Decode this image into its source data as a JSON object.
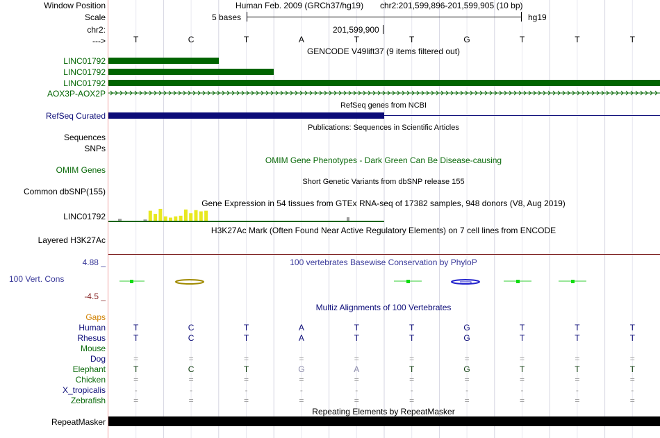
{
  "header": {
    "window_position_label": "Window Position",
    "scale_label": "Scale",
    "chr_label": "chr2:",
    "strand_label": "--->",
    "assembly": "Human Feb. 2009 (GRCh37/hg19)",
    "position": "chr2:201,599,896-201,599,905 (10 bp)",
    "scale_text": "5 bases",
    "db": "hg19",
    "coordinate": "201,599,900"
  },
  "bases": [
    "T",
    "C",
    "T",
    "A",
    "T",
    "T",
    "G",
    "T",
    "T",
    "T"
  ],
  "gencode": {
    "title": "GENCODE V49lift37 (9 items filtered out)",
    "tracks": [
      "LINC01792",
      "LINC01792",
      "LINC01792",
      "AOX3P-AOX2P"
    ]
  },
  "refseq": {
    "title": "RefSeq genes from NCBI",
    "label": "RefSeq Curated"
  },
  "publications": {
    "title": "Publications: Sequences in Scientific Articles",
    "label1": "Sequences",
    "label2": "SNPs"
  },
  "omim": {
    "title": "OMIM Gene Phenotypes - Dark Green Can Be Disease-causing",
    "label": "OMIM Genes"
  },
  "dbsnp": {
    "title": "Short Genetic Variants from dbSNP release 155",
    "label": "Common dbSNP(155)"
  },
  "gtex": {
    "title": "Gene Expression in 54 tissues from GTEx RNA-seq of 17382 samples, 948 donors (V8, Aug 2019)",
    "label": "LINC01792",
    "bar_levels": [
      0.15,
      0,
      0,
      0,
      0,
      0.1,
      0.8,
      0.55,
      0.95,
      0.35,
      0.25,
      0.35,
      0.4,
      0.9,
      0.6,
      0.85,
      0.75,
      0.8
    ]
  },
  "h3k27ac": {
    "title": "H3K27Ac Mark (Often Found Near Active Regulatory Elements) on 7 cell lines from ENCODE",
    "label": "Layered H3K27Ac"
  },
  "cons": {
    "title": "100 vertebrates Basewise Conservation by PhyloP",
    "label": "100 Vert. Cons",
    "ymax": "4.88 _",
    "ymin": "-4.5 _"
  },
  "multiz": {
    "title": "Multiz Alignments of 100 Vertebrates",
    "gaps_label": "Gaps",
    "species": [
      {
        "name": "Human",
        "row": [
          "T",
          "C",
          "T",
          "A",
          "T",
          "T",
          "G",
          "T",
          "T",
          "T"
        ]
      },
      {
        "name": "Rhesus",
        "row": [
          "T",
          "C",
          "T",
          "A",
          "T",
          "T",
          "G",
          "T",
          "T",
          "T"
        ]
      },
      {
        "name": "Mouse",
        "row": [
          "",
          "",
          "",
          "",
          "",
          "",
          "",
          "",
          "",
          ""
        ]
      },
      {
        "name": "Dog",
        "row": [
          "=",
          "=",
          "=",
          "=",
          "=",
          "=",
          "=",
          "=",
          "=",
          "="
        ]
      },
      {
        "name": "Elephant",
        "row": [
          "T",
          "C",
          "T",
          "G",
          "A",
          "T",
          "G",
          "T",
          "T",
          "T"
        ]
      },
      {
        "name": "Chicken",
        "row": [
          "=",
          "=",
          "=",
          "=",
          "=",
          "=",
          "=",
          "=",
          "=",
          "="
        ]
      },
      {
        "name": "X_tropicalis",
        "row": [
          "-",
          "-",
          "-",
          "-",
          "-",
          "-",
          "-",
          "-",
          "-",
          "-"
        ]
      },
      {
        "name": "Zebrafish",
        "row": [
          "=",
          "=",
          "=",
          "=",
          "=",
          "=",
          "=",
          "=",
          "=",
          "="
        ]
      }
    ]
  },
  "repeat": {
    "title": "Repeating Elements by RepeatMasker",
    "label": "RepeatMasker"
  },
  "colors": {
    "gencode_green": "#006400",
    "refseq_blue": "#0c0c78",
    "omim_green": "#0b6a0b",
    "cons_blue": "#3a3a9a",
    "gap_orange": "#d08000"
  }
}
